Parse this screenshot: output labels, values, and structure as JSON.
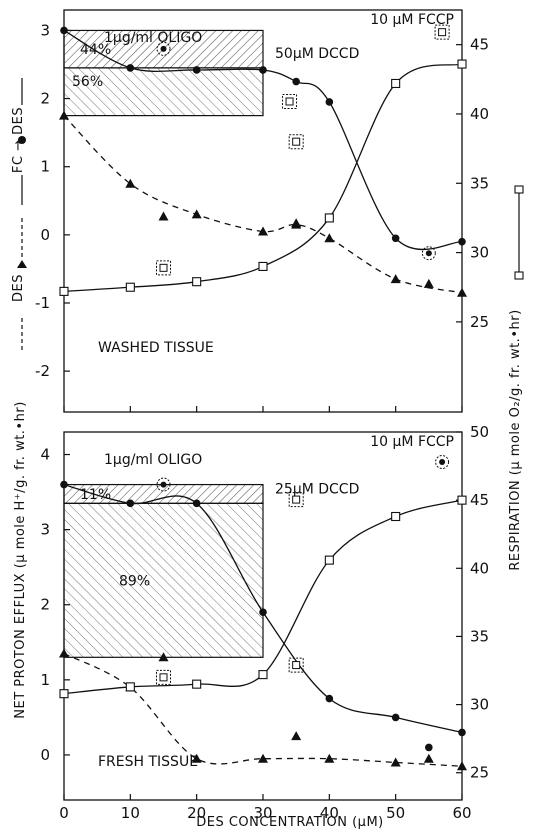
{
  "chart_data": [
    {
      "type": "line",
      "panel": "top",
      "panel_label": "WASHED TISSUE",
      "xlabel": "",
      "xlim": [
        0,
        60
      ],
      "left_axis": {
        "label_top": "FC → DES",
        "label_bottom": "DES",
        "ylim": [
          -2.6,
          3.3
        ],
        "ticks": [
          3,
          2,
          1,
          0,
          -1,
          -2
        ],
        "tick_labels": [
          "3",
          "2",
          "1",
          "0",
          "-1",
          "-2"
        ]
      },
      "right_axis": {
        "label": "",
        "ylim": [
          18.5,
          47.5
        ],
        "ticks": [
          45,
          40,
          35,
          30,
          25
        ],
        "tick_labels": [
          "45",
          "40",
          "35",
          "30",
          "25"
        ]
      },
      "series": [
        {
          "legend_label": "FC → DES",
          "marker": "filled-circle",
          "line": "solid",
          "axis": "left",
          "x": [
            0,
            10,
            20,
            30,
            35,
            40,
            50,
            60
          ],
          "y": [
            3.0,
            2.45,
            2.42,
            2.42,
            2.25,
            1.95,
            -0.05,
            -0.1
          ]
        },
        {
          "legend_label": "DES",
          "marker": "filled-triangle",
          "line": "dashed",
          "axis": "left",
          "x": [
            0,
            10,
            20,
            30,
            35,
            40,
            50,
            60
          ],
          "y": [
            1.75,
            0.75,
            0.3,
            0.05,
            0.15,
            -0.05,
            -0.65,
            -0.85
          ]
        },
        {
          "legend_label": "",
          "marker": "open-square",
          "line": "solid",
          "axis": "right",
          "x": [
            0,
            10,
            20,
            30,
            40,
            50,
            60
          ],
          "y": [
            27.2,
            27.5,
            27.9,
            29.0,
            32.5,
            42.2,
            43.6
          ]
        }
      ],
      "treated_points": [
        {
          "marker": "circle-dot",
          "axis": "left",
          "x": 15,
          "y": 2.73
        },
        {
          "marker": "filled-triangle",
          "axis": "left",
          "x": 15,
          "y": 0.27
        },
        {
          "marker": "square-dot",
          "axis": "right",
          "x": 15,
          "y": 28.9
        },
        {
          "marker": "square-dot",
          "axis": "right",
          "x": 34,
          "y": 40.9
        },
        {
          "marker": "square-dot",
          "axis": "right",
          "x": 35,
          "y": 38.0
        },
        {
          "marker": "filled-triangle",
          "axis": "left",
          "x": 35,
          "y": 0.17
        },
        {
          "marker": "circle-dot",
          "axis": "left",
          "x": 55,
          "y": -0.27
        },
        {
          "marker": "filled-triangle",
          "axis": "left",
          "x": 55,
          "y": -0.72
        },
        {
          "marker": "square-dot",
          "axis": "right",
          "x": 57,
          "y": 45.9
        }
      ],
      "annotations": {
        "oligo": "1µg/ml OLIGO",
        "dccd": "50µM DCCD",
        "fccp": "10 µM FCCP",
        "pct_upper": "44%",
        "pct_lower": "56%"
      },
      "hatched_box": {
        "x": [
          0,
          30
        ],
        "top": 3.0,
        "split": 2.45,
        "bottom": 1.75
      }
    },
    {
      "type": "line",
      "panel": "bottom",
      "panel_label": "FRESH TISSUE",
      "xlabel": "DES CONCENTRATION (µM)",
      "xlim": [
        0,
        60
      ],
      "x_ticks": [
        0,
        10,
        20,
        30,
        40,
        50,
        60
      ],
      "left_axis": {
        "label": "NET PROTON EFFLUX (µ mole H⁺/g. fr. wt.•hr)",
        "ylim": [
          -0.6,
          4.3
        ],
        "ticks": [
          4,
          3,
          2,
          1,
          0
        ],
        "tick_labels": [
          "4",
          "3",
          "2",
          "1",
          "0"
        ]
      },
      "right_axis": {
        "label": "RESPIRATION (µ mole O₂/g. fr. wt.•hr)",
        "ylim": [
          23,
          50
        ],
        "ticks": [
          50,
          45,
          40,
          35,
          30,
          25
        ],
        "tick_labels": [
          "50",
          "45",
          "40",
          "35",
          "30",
          "25"
        ]
      },
      "series": [
        {
          "legend_label": "FC → DES",
          "marker": "filled-circle",
          "line": "solid",
          "axis": "left",
          "x": [
            0,
            10,
            20,
            30,
            40,
            50,
            60
          ],
          "y": [
            3.6,
            3.35,
            3.35,
            1.9,
            0.75,
            0.5,
            0.3
          ]
        },
        {
          "legend_label": "DES",
          "marker": "filled-triangle",
          "line": "dashed",
          "axis": "left",
          "x": [
            0,
            10,
            20,
            30,
            40,
            50,
            60
          ],
          "y": [
            1.35,
            0.9,
            -0.05,
            -0.05,
            -0.05,
            -0.1,
            -0.15
          ]
        },
        {
          "legend_label": "",
          "marker": "open-square",
          "line": "solid",
          "axis": "right",
          "x": [
            0,
            10,
            20,
            30,
            40,
            50,
            60
          ],
          "y": [
            30.8,
            31.3,
            31.5,
            32.2,
            40.6,
            43.8,
            45.0
          ]
        }
      ],
      "treated_points": [
        {
          "marker": "circle-dot",
          "axis": "left",
          "x": 15,
          "y": 3.6
        },
        {
          "marker": "filled-triangle",
          "axis": "left",
          "x": 15,
          "y": 1.3
        },
        {
          "marker": "square-dot",
          "axis": "right",
          "x": 15,
          "y": 32.0
        },
        {
          "marker": "square-dot",
          "axis": "left",
          "x": 35,
          "y": 3.4
        },
        {
          "marker": "square-dot",
          "axis": "right",
          "x": 35,
          "y": 32.9
        },
        {
          "marker": "filled-triangle",
          "axis": "left",
          "x": 35,
          "y": 0.25
        },
        {
          "marker": "filled-circle",
          "axis": "left",
          "x": 55,
          "y": 0.1
        },
        {
          "marker": "filled-triangle",
          "axis": "left",
          "x": 55,
          "y": -0.05
        },
        {
          "marker": "circle-dot",
          "axis": "left",
          "x": 57,
          "y": 3.9
        }
      ],
      "annotations": {
        "oligo": "1µg/ml OLIGO",
        "dccd": "25µM DCCD",
        "fccp": "10 µM FCCP",
        "pct_upper": "11%",
        "pct_lower": "89%"
      },
      "hatched_box": {
        "x": [
          0,
          30
        ],
        "top": 3.6,
        "split": 3.35,
        "bottom": 1.3
      }
    }
  ]
}
